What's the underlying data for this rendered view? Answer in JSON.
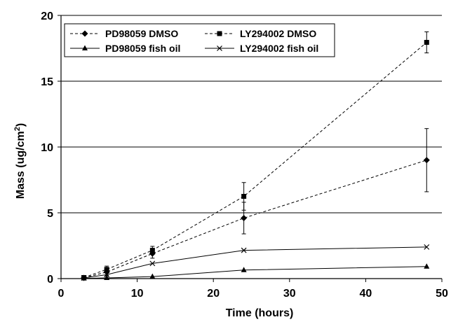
{
  "chart_data": {
    "type": "line",
    "xlabel": "Time (hours)",
    "ylabel_main": "Mass (ug/cm",
    "ylabel_sup": "2",
    "ylabel_tail": ")",
    "xlim": [
      0,
      50
    ],
    "ylim": [
      0,
      20
    ],
    "x_ticks": [
      0,
      10,
      20,
      30,
      40,
      50
    ],
    "y_ticks": [
      0,
      5,
      10,
      15,
      20
    ],
    "grid": "horizontal",
    "legend_position": "top",
    "series": [
      {
        "name": "PD98059 DMSO",
        "marker": "diamond",
        "line": "dashed",
        "x": [
          3,
          6,
          12,
          24,
          48
        ],
        "y": [
          0.05,
          0.5,
          1.9,
          4.6,
          9.0
        ],
        "err": [
          0.05,
          0.25,
          0.35,
          1.2,
          2.4
        ]
      },
      {
        "name": "LY294002 DMSO",
        "marker": "square",
        "line": "dashed",
        "x": [
          3,
          6,
          12,
          24,
          48
        ],
        "y": [
          0.08,
          0.7,
          2.15,
          6.25,
          17.95
        ],
        "err": [
          0.05,
          0.25,
          0.3,
          1.05,
          0.8
        ]
      },
      {
        "name": "PD98059 fish oil",
        "marker": "triangle",
        "line": "solid",
        "x": [
          3,
          6,
          12,
          24,
          48
        ],
        "y": [
          0.02,
          0.05,
          0.15,
          0.65,
          0.92
        ],
        "err": [
          0,
          0,
          0,
          0,
          0
        ]
      },
      {
        "name": "LY294002 fish oil",
        "marker": "x",
        "line": "solid",
        "x": [
          3,
          6,
          12,
          24,
          48
        ],
        "y": [
          0.05,
          0.3,
          1.15,
          2.15,
          2.4
        ],
        "err": [
          0,
          0,
          0,
          0,
          0
        ]
      }
    ]
  }
}
